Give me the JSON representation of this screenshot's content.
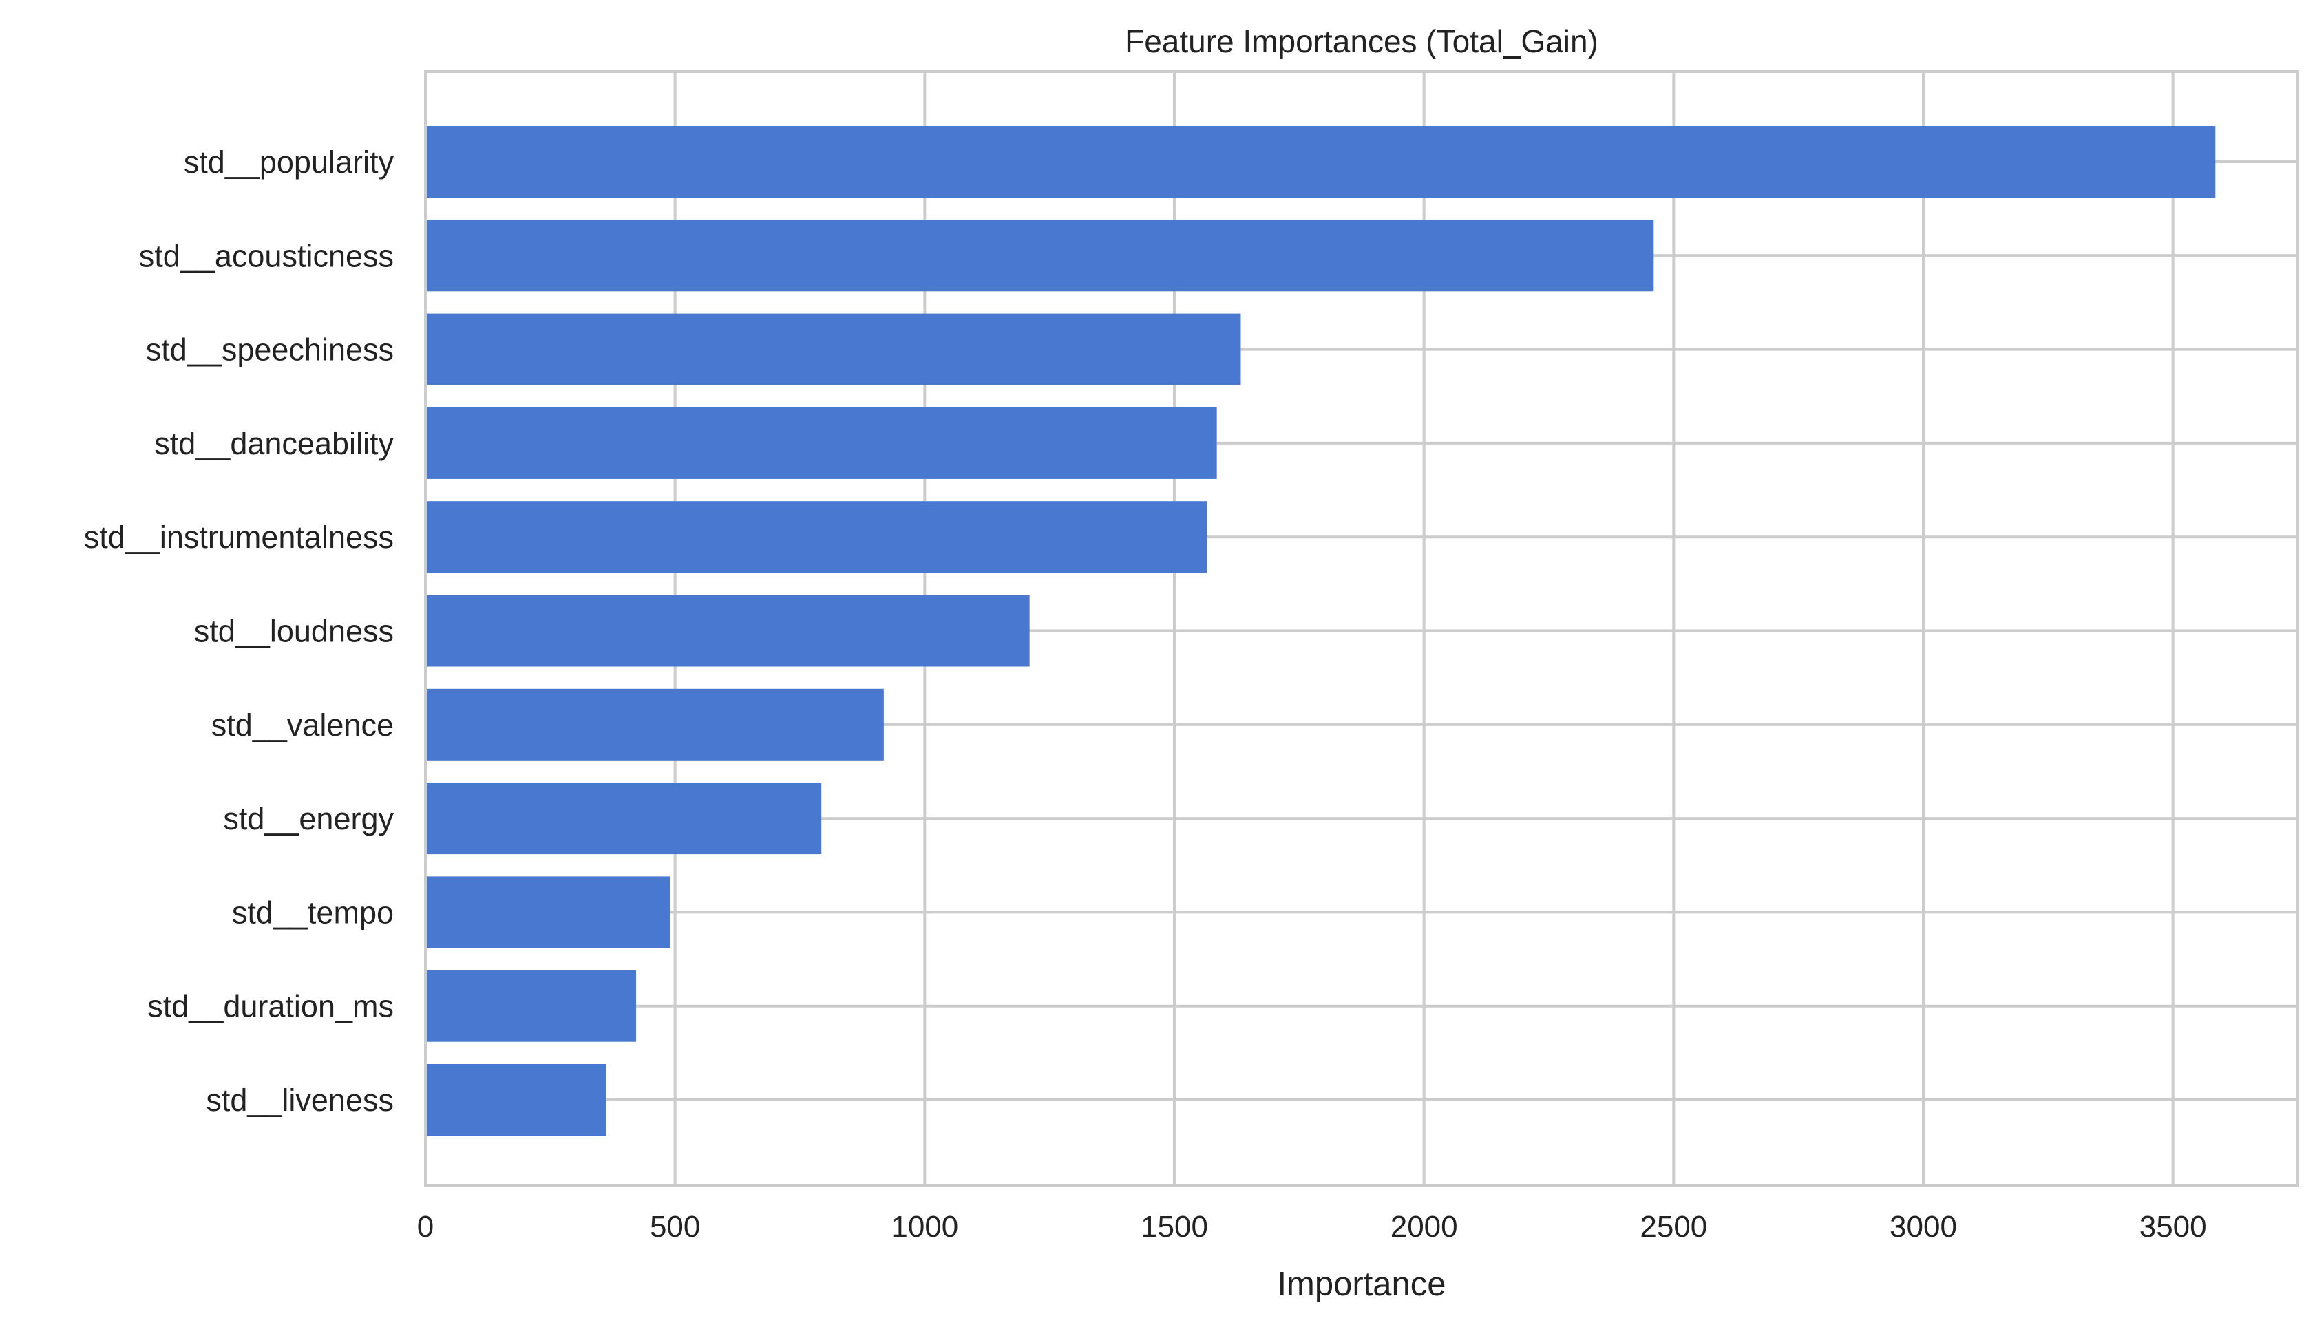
{
  "chart_data": {
    "type": "bar",
    "orientation": "horizontal",
    "title": "Feature Importances (Total_Gain)",
    "xlabel": "Importance",
    "ylabel": "",
    "categories": [
      "std__popularity",
      "std__acousticness",
      "std__speechiness",
      "std__danceability",
      "std__instrumentalness",
      "std__loudness",
      "std__valence",
      "std__energy",
      "std__tempo",
      "std__duration_ms",
      "std__liveness"
    ],
    "values": [
      3585,
      2460,
      1633,
      1585,
      1565,
      1210,
      918,
      793,
      490,
      422,
      362
    ],
    "xlim": [
      0,
      3750
    ],
    "xticks": [
      0,
      500,
      1000,
      1500,
      2000,
      2500,
      3000,
      3500
    ],
    "grid": true,
    "legend": "none",
    "colors": {
      "bar": "#4878d0",
      "grid": "#cccccc",
      "frame": "#cccccc",
      "text": "#222222"
    }
  }
}
